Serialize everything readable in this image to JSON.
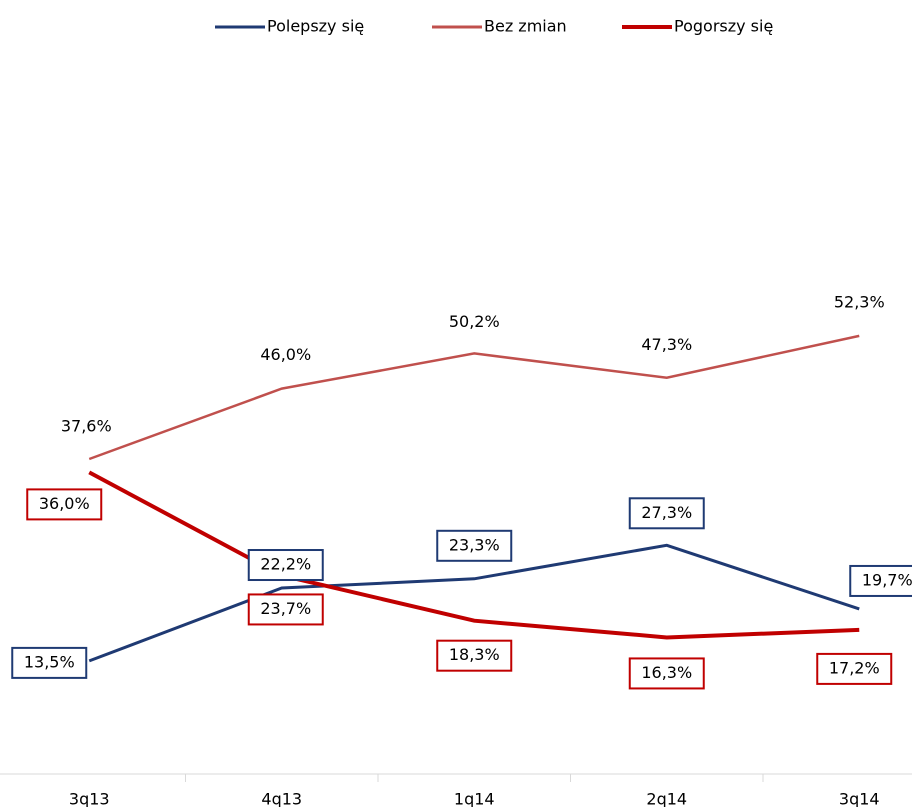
{
  "chart_data": {
    "type": "line",
    "categories": [
      "3q13",
      "4q13",
      "1q14",
      "2q14",
      "3q14"
    ],
    "series": [
      {
        "name": "Polepszy się",
        "color": "#1f3a73",
        "values": [
          13.5,
          22.2,
          23.3,
          27.3,
          19.7
        ],
        "value_labels": [
          "13,5%",
          "22,2%",
          "23,3%",
          "27,3%",
          "19,7%"
        ]
      },
      {
        "name": "Bez zmian",
        "color": "#c0504d",
        "values": [
          37.6,
          46.0,
          50.2,
          47.3,
          52.3
        ],
        "value_labels": [
          "37,6%",
          "46,0%",
          "50,2%",
          "47,3%",
          "52,3%"
        ]
      },
      {
        "name": "Pogorszy się",
        "color": "#c00000",
        "values": [
          36.0,
          23.7,
          18.3,
          16.3,
          17.2
        ],
        "value_labels": [
          "36,0%",
          "23,7%",
          "18,3%",
          "16,3%",
          "17,2%"
        ]
      }
    ],
    "ylim": [
      0,
      90
    ],
    "legend": "top"
  }
}
